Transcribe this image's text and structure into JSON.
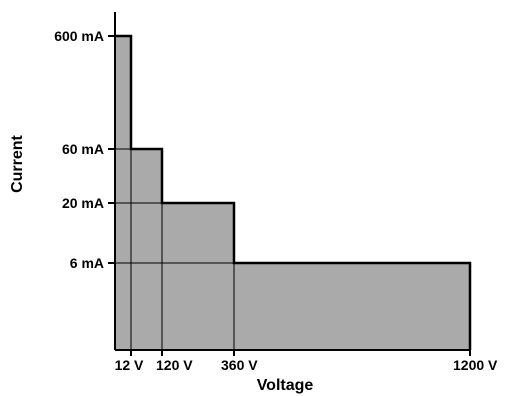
{
  "chart_data": {
    "type": "area",
    "title": "",
    "xlabel": "Voltage",
    "ylabel": "Current",
    "x_tick_labels": [
      "12 V",
      "120 V",
      "360 V",
      "1200 V"
    ],
    "y_tick_labels": [
      "600 mA",
      "60 mA",
      "20 mA",
      "6 mA"
    ],
    "series": [
      {
        "steps": [
          {
            "x_to": "12 V",
            "y": "600 mA"
          },
          {
            "x_to": "120 V",
            "y": "60 mA"
          },
          {
            "x_to": "360 V",
            "y": "20 mA"
          },
          {
            "x_to": "1200 V",
            "y": "6 mA"
          }
        ]
      }
    ],
    "fill_color": "#aaaaaa",
    "line_color": "#000000",
    "grid": false,
    "legend": "none"
  }
}
